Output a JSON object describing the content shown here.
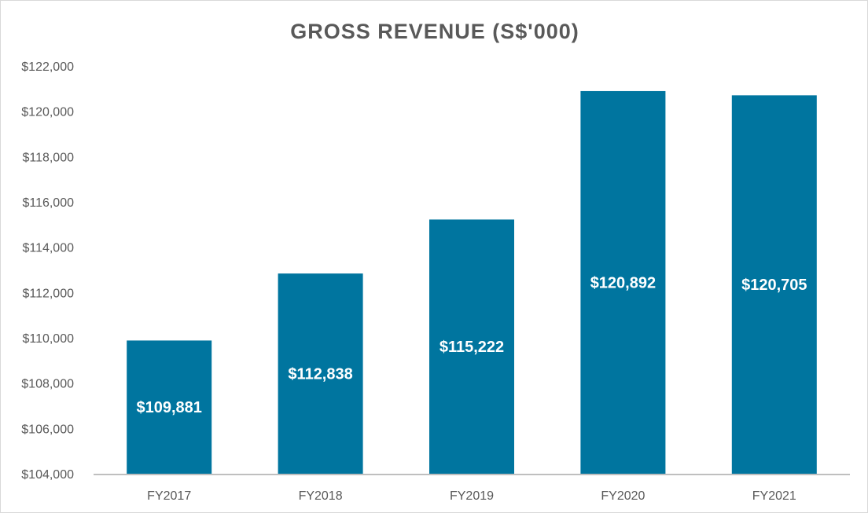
{
  "chart_data": {
    "type": "bar",
    "title": "GROSS REVENUE (S$'000)",
    "xlabel": "",
    "ylabel": "",
    "categories": [
      "FY2017",
      "FY2018",
      "FY2019",
      "FY2020",
      "FY2021"
    ],
    "values": [
      109881,
      112838,
      115222,
      120892,
      120705
    ],
    "data_labels": [
      "$109,881",
      "$112,838",
      "$115,222",
      "$120,892",
      "$120,705"
    ],
    "ylim": [
      104000,
      122000
    ],
    "y_ticks": [
      104000,
      106000,
      108000,
      110000,
      112000,
      114000,
      116000,
      118000,
      120000,
      122000
    ],
    "y_tick_labels": [
      "$104,000",
      "$106,000",
      "$108,000",
      "$110,000",
      "$112,000",
      "$114,000",
      "$116,000",
      "$118,000",
      "$120,000",
      "$122,000"
    ],
    "grid": false,
    "legend": "none",
    "bar_color": "#00759f",
    "axis_color": "#bfbfbf",
    "text_color": "#595959"
  }
}
